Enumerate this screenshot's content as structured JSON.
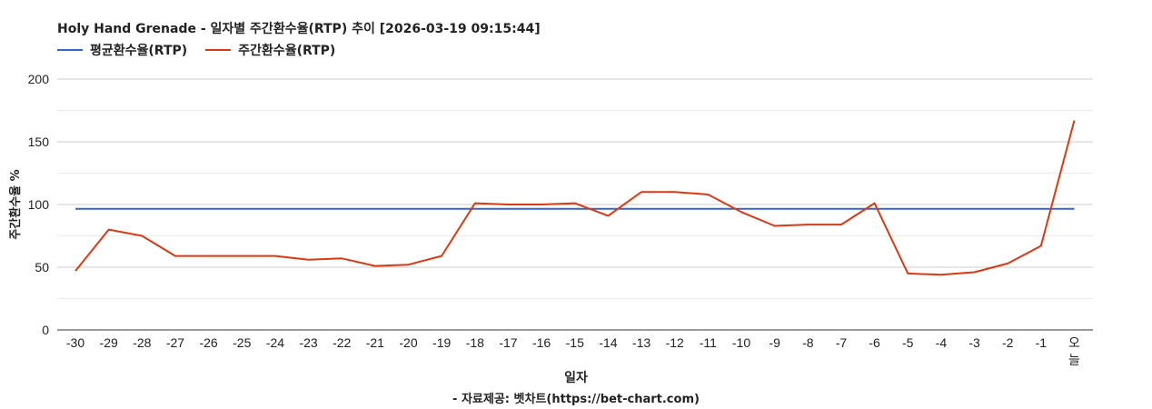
{
  "title": "Holy Hand Grenade - 일자별 주간환수율(RTP) 추이 [2026-03-19 09:15:44]",
  "credit": "- 자료제공: 벳차트(https://bet-chart.com)",
  "colors": {
    "average": "#3366cc",
    "weekly": "#dc3912",
    "grid": "#cccccc",
    "minorgrid": "#ebebeb",
    "axis": "#333333"
  },
  "chart_data": {
    "type": "line",
    "xlabel": "일자",
    "ylabel": "주간환수율 %",
    "ylim": [
      0,
      200
    ],
    "yticks": [
      0,
      50,
      100,
      150,
      200
    ],
    "grid": true,
    "legend_position": "top-left",
    "categories": [
      "-30",
      "-29",
      "-28",
      "-27",
      "-26",
      "-25",
      "-24",
      "-23",
      "-22",
      "-21",
      "-20",
      "-19",
      "-18",
      "-17",
      "-16",
      "-15",
      "-14",
      "-13",
      "-12",
      "-11",
      "-10",
      "-9",
      "-8",
      "-7",
      "-6",
      "-5",
      "-4",
      "-3",
      "-2",
      "-1",
      "오늘"
    ],
    "series": [
      {
        "name": "평균환수율(RTP)",
        "color": "#3366cc",
        "values": [
          96.5,
          96.5,
          96.5,
          96.5,
          96.5,
          96.5,
          96.5,
          96.5,
          96.5,
          96.5,
          96.5,
          96.5,
          96.5,
          96.5,
          96.5,
          96.5,
          96.5,
          96.5,
          96.5,
          96.5,
          96.5,
          96.5,
          96.5,
          96.5,
          96.5,
          96.5,
          96.5,
          96.5,
          96.5,
          96.5,
          96.5
        ]
      },
      {
        "name": "주간환수율(RTP)",
        "color": "#dc3912",
        "values": [
          47,
          80,
          75,
          59,
          59,
          59,
          59,
          56,
          57,
          51,
          52,
          59,
          101,
          100,
          100,
          101,
          91,
          110,
          110,
          108,
          94,
          83,
          84,
          84,
          101,
          45,
          44,
          46,
          53,
          67,
          167
        ]
      }
    ]
  }
}
